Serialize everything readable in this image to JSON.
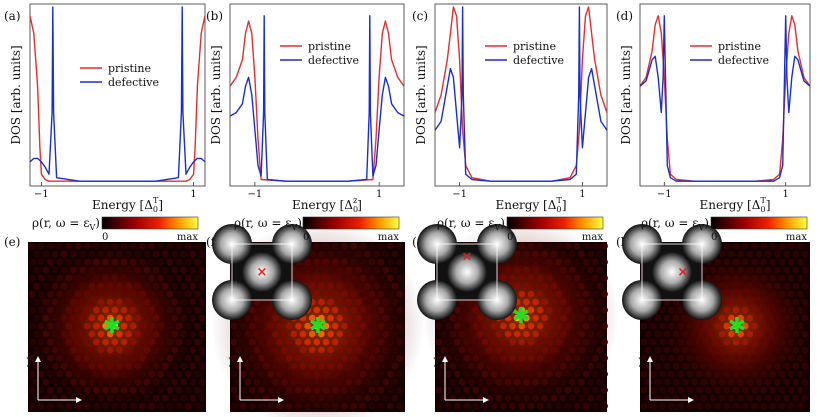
{
  "dos_panels": {
    "xlabel_energy": "Energy",
    "xlabel_units": [
      "[Δ",
      "0",
      "T",
      "]"
    ],
    "xlabel_units_b": [
      "[Δ",
      "0",
      "z",
      "]"
    ],
    "ylabel": "DOS [arb. units]",
    "legend_pristine": "pristine",
    "legend_defective": "defective",
    "tick_neg1": "−1",
    "tick_pos1": "1"
  },
  "labels": [
    "(a)",
    "(b)",
    "(c)",
    "(d)",
    "(e)",
    "(f)",
    "(g)",
    "(h)"
  ],
  "colorbar": {
    "label": "ρ(r, ω = ε",
    "label_sub": "V",
    "min_label": "0",
    "max_label": "max"
  },
  "maps": {
    "axis_y": "y",
    "axis_x": "x"
  },
  "colors": {
    "pristine": "#e03030",
    "defective": "#1a2fd0",
    "star": "#22dd22",
    "marker": "#e02020"
  },
  "chart_data": [
    {
      "type": "line",
      "panel": "(a)",
      "xlabel": "Energy [Δ0T]",
      "ylabel": "DOS [arb. units]",
      "xlim": [
        -1.15,
        1.15
      ],
      "series": [
        {
          "name": "pristine",
          "x": [
            -1.15,
            -1.1,
            -1.05,
            -1.02,
            -1.0,
            -0.95,
            -0.9,
            -0.5,
            0,
            0.5,
            0.9,
            0.95,
            1.0,
            1.02,
            1.05,
            1.1,
            1.15
          ],
          "y": [
            0.95,
            0.85,
            0.55,
            0.2,
            0.05,
            0.02,
            0.01,
            0.01,
            0.01,
            0.01,
            0.01,
            0.02,
            0.05,
            0.2,
            0.55,
            0.85,
            0.95
          ]
        },
        {
          "name": "defective",
          "x": [
            -1.15,
            -1.1,
            -1.05,
            -1.0,
            -0.95,
            -0.9,
            -0.86,
            -0.85,
            -0.84,
            -0.8,
            -0.5,
            0,
            0.5,
            0.8,
            0.84,
            0.85,
            0.86,
            0.9,
            0.95,
            1.0,
            1.05,
            1.1,
            1.15
          ],
          "y": [
            0.12,
            0.14,
            0.14,
            0.12,
            0.09,
            0.05,
            0.4,
            1.0,
            0.4,
            0.03,
            0.01,
            0.01,
            0.01,
            0.03,
            0.4,
            1.0,
            0.4,
            0.05,
            0.09,
            0.12,
            0.14,
            0.14,
            0.12
          ]
        }
      ]
    },
    {
      "type": "line",
      "panel": "(b)",
      "xlabel": "Energy [Δ0z]",
      "ylabel": "DOS [arb. units]",
      "xlim": [
        -1.4,
        1.4
      ],
      "series": [
        {
          "name": "pristine",
          "x": [
            -1.4,
            -1.3,
            -1.2,
            -1.15,
            -1.1,
            -1.05,
            -1.0,
            -0.95,
            -0.9,
            -0.5,
            0,
            0.5,
            0.9,
            0.95,
            1.0,
            1.05,
            1.1,
            1.15,
            1.2,
            1.3,
            1.4
          ],
          "y": [
            0.55,
            0.6,
            0.7,
            0.85,
            0.92,
            0.85,
            0.6,
            0.25,
            0.02,
            0.01,
            0.01,
            0.01,
            0.02,
            0.25,
            0.6,
            0.85,
            0.92,
            0.85,
            0.7,
            0.6,
            0.55
          ]
        },
        {
          "name": "defective",
          "x": [
            -1.4,
            -1.3,
            -1.2,
            -1.15,
            -1.1,
            -1.05,
            -1.0,
            -0.95,
            -0.9,
            -0.86,
            -0.85,
            -0.84,
            -0.8,
            -0.5,
            0,
            0.5,
            0.8,
            0.84,
            0.85,
            0.86,
            0.9,
            0.95,
            1.0,
            1.05,
            1.1,
            1.15,
            1.2,
            1.3,
            1.4
          ],
          "y": [
            0.38,
            0.4,
            0.45,
            0.55,
            0.6,
            0.5,
            0.3,
            0.1,
            0.04,
            0.4,
            0.95,
            0.4,
            0.02,
            0.01,
            0.01,
            0.01,
            0.02,
            0.4,
            0.95,
            0.4,
            0.04,
            0.1,
            0.3,
            0.5,
            0.6,
            0.55,
            0.45,
            0.4,
            0.38
          ]
        }
      ]
    },
    {
      "type": "line",
      "panel": "(c)",
      "xlabel": "Energy [Δ0T]",
      "ylabel": "DOS [arb. units]",
      "xlim": [
        -1.4,
        1.4
      ],
      "series": [
        {
          "name": "pristine",
          "x": [
            -1.4,
            -1.3,
            -1.2,
            -1.15,
            -1.1,
            -1.05,
            -1.0,
            -0.95,
            -0.9,
            -0.8,
            -0.5,
            0,
            0.5,
            0.8,
            0.9,
            0.95,
            1.0,
            1.05,
            1.1,
            1.15,
            1.2,
            1.3,
            1.4
          ],
          "y": [
            0.4,
            0.5,
            0.7,
            0.85,
            1.0,
            0.95,
            0.7,
            0.3,
            0.1,
            0.03,
            0.01,
            0.01,
            0.01,
            0.03,
            0.1,
            0.3,
            0.7,
            0.95,
            1.0,
            0.85,
            0.7,
            0.5,
            0.4
          ]
        },
        {
          "name": "defective",
          "x": [
            -1.4,
            -1.3,
            -1.2,
            -1.15,
            -1.1,
            -1.05,
            -1.0,
            -0.96,
            -0.95,
            -0.94,
            -0.9,
            -0.8,
            -0.5,
            0,
            0.5,
            0.8,
            0.9,
            0.94,
            0.95,
            0.96,
            1.0,
            1.05,
            1.1,
            1.15,
            1.2,
            1.3,
            1.4
          ],
          "y": [
            0.3,
            0.35,
            0.55,
            0.65,
            0.6,
            0.4,
            0.2,
            0.5,
            1.0,
            0.5,
            0.05,
            0.02,
            0.01,
            0.01,
            0.01,
            0.02,
            0.05,
            0.5,
            1.0,
            0.5,
            0.2,
            0.4,
            0.6,
            0.65,
            0.55,
            0.35,
            0.3
          ]
        }
      ]
    },
    {
      "type": "line",
      "panel": "(d)",
      "xlabel": "Energy [Δ0T]",
      "ylabel": "DOS [arb. units]",
      "xlim": [
        -1.4,
        1.4
      ],
      "series": [
        {
          "name": "pristine",
          "x": [
            -1.4,
            -1.3,
            -1.2,
            -1.15,
            -1.1,
            -1.05,
            -1.0,
            -0.95,
            -0.9,
            -0.8,
            -0.5,
            0,
            0.5,
            0.8,
            0.9,
            0.95,
            1.0,
            1.05,
            1.1,
            1.15,
            1.2,
            1.3,
            1.4
          ],
          "y": [
            0.55,
            0.6,
            0.75,
            0.9,
            0.95,
            0.85,
            0.6,
            0.25,
            0.05,
            0.02,
            0.01,
            0.01,
            0.01,
            0.02,
            0.05,
            0.25,
            0.6,
            0.85,
            0.95,
            0.9,
            0.75,
            0.6,
            0.55
          ]
        },
        {
          "name": "defective",
          "x": [
            -1.4,
            -1.3,
            -1.2,
            -1.15,
            -1.1,
            -1.05,
            -1.02,
            -1.0,
            -0.98,
            -0.95,
            -0.9,
            -0.8,
            -0.5,
            0,
            0.5,
            0.8,
            0.9,
            0.95,
            0.98,
            1.0,
            1.02,
            1.05,
            1.1,
            1.15,
            1.2,
            1.3,
            1.4
          ],
          "y": [
            0.55,
            0.58,
            0.7,
            0.72,
            0.6,
            0.4,
            0.6,
            0.95,
            0.6,
            0.1,
            0.03,
            0.01,
            0.01,
            0.01,
            0.01,
            0.01,
            0.03,
            0.1,
            0.6,
            0.95,
            0.6,
            0.4,
            0.6,
            0.72,
            0.7,
            0.58,
            0.55
          ]
        }
      ]
    },
    {
      "type": "heatmap",
      "panel": "(e)",
      "colorbar_range": [
        "0",
        "max"
      ],
      "impurity_marker": "star",
      "inset": false
    },
    {
      "type": "heatmap",
      "panel": "(f)",
      "colorbar_range": [
        "0",
        "max"
      ],
      "impurity_marker": "star",
      "inset": true,
      "inset_marker": "cross",
      "inset_marker_pos": [
        0.5,
        0.5
      ]
    },
    {
      "type": "heatmap",
      "panel": "(g)",
      "colorbar_range": [
        "0",
        "max"
      ],
      "impurity_marker": "star",
      "inset": true,
      "inset_marker": "cross",
      "inset_marker_pos": [
        0.5,
        0.22
      ]
    },
    {
      "type": "heatmap",
      "panel": "(h)",
      "colorbar_range": [
        "0",
        "max"
      ],
      "impurity_marker": "star",
      "inset": true,
      "inset_marker": "cross",
      "inset_marker_pos": [
        0.68,
        0.5
      ]
    }
  ]
}
